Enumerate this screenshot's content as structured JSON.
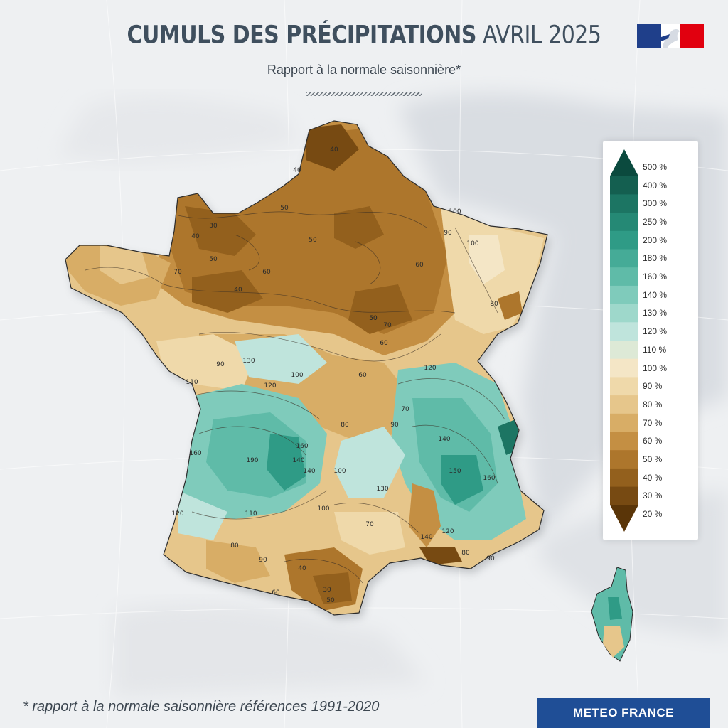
{
  "header": {
    "title_bold": "CUMULS DES PRÉCIPITATIONS",
    "title_light": "AVRIL 2025",
    "subtitle": "Rapport à la normale saisonnière*"
  },
  "footer": {
    "footnote": "* rapport à la normale saisonnière références 1991-2020",
    "brand": "METEO FRANCE"
  },
  "colors": {
    "brand_blue": "#1f4e96",
    "flag_blue": "#1f3f8a",
    "flag_red": "#e1000f"
  },
  "legend": {
    "items": [
      {
        "label": "500 %",
        "color": "#0b4a3e"
      },
      {
        "label": "400 %",
        "color": "#145f50"
      },
      {
        "label": "300 %",
        "color": "#1c7563"
      },
      {
        "label": "250 %",
        "color": "#258975"
      },
      {
        "label": "200 %",
        "color": "#2f9b86"
      },
      {
        "label": "180 %",
        "color": "#45ab97"
      },
      {
        "label": "160 %",
        "color": "#5fbba8"
      },
      {
        "label": "140 %",
        "color": "#7fcbbb"
      },
      {
        "label": "130 %",
        "color": "#9ed8cb"
      },
      {
        "label": "120 %",
        "color": "#bfe4dc"
      },
      {
        "label": "110 %",
        "color": "#dde9d6"
      },
      {
        "label": "100 %",
        "color": "#f4e6c6"
      },
      {
        "label": "90 %",
        "color": "#efd9aa"
      },
      {
        "label": "80 %",
        "color": "#e6c68b"
      },
      {
        "label": "70 %",
        "color": "#d8ad66"
      },
      {
        "label": "60 %",
        "color": "#c48f43"
      },
      {
        "label": "50 %",
        "color": "#ad762c"
      },
      {
        "label": "40 %",
        "color": "#93601d"
      },
      {
        "label": "30 %",
        "color": "#774a12"
      },
      {
        "label": "20 %",
        "color": "#5a3508"
      }
    ]
  },
  "map": {
    "contour_labels": [
      "40",
      "50",
      "30",
      "40",
      "50",
      "60",
      "70",
      "50",
      "40",
      "60",
      "70",
      "80",
      "90",
      "100",
      "50",
      "60",
      "90",
      "100",
      "110",
      "120",
      "130",
      "140",
      "160",
      "190",
      "160",
      "140",
      "120",
      "110",
      "100",
      "90",
      "80",
      "70",
      "60",
      "50",
      "40",
      "120",
      "130",
      "140",
      "160",
      "150",
      "140",
      "120",
      "100",
      "90",
      "80",
      "30",
      "40",
      "50",
      "60",
      "100",
      "90",
      "80",
      "70"
    ],
    "contour_values": [
      20,
      30,
      40,
      50,
      60,
      70,
      80,
      90,
      100,
      110,
      120,
      130,
      140,
      160,
      180,
      190,
      200
    ]
  }
}
